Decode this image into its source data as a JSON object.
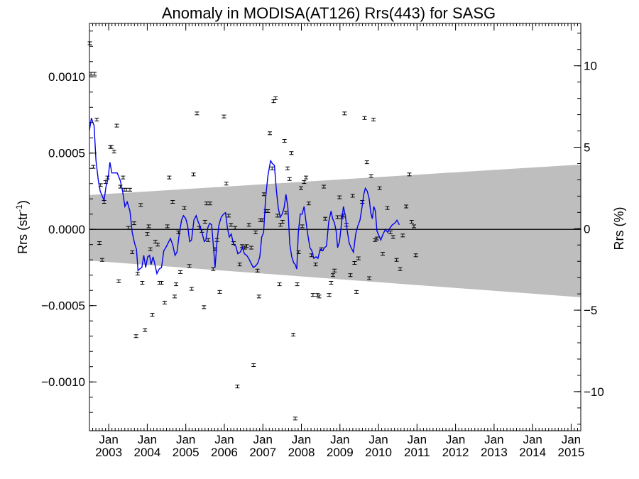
{
  "chart_data": {
    "type": "scatter",
    "title": "Anomaly in MODISA(AT126) Rrs(443) for SASG",
    "ylabel_left": "Rrs (str",
    "ylabel_left_sup": "-1",
    "ylabel_left_close": ")",
    "ylabel_right": "Rrs (%)",
    "xlim": [
      2002.5,
      2015.25
    ],
    "ylim": [
      -0.00132,
      0.00135
    ],
    "ylim_right": [
      -12.4,
      12.6
    ],
    "left_ticks": [
      {
        "value": 0.001,
        "label": "0.0010"
      },
      {
        "value": 0.0005,
        "label": "0.0005"
      },
      {
        "value": 0.0,
        "label": "0.0000"
      },
      {
        "value": -0.0005,
        "label": "−0.0005"
      },
      {
        "value": -0.001,
        "label": "−0.0010"
      }
    ],
    "right_ticks": [
      {
        "value": 10,
        "label": "10"
      },
      {
        "value": 5,
        "label": "5"
      },
      {
        "value": 0,
        "label": "0"
      },
      {
        "value": -5,
        "label": "−5"
      },
      {
        "value": -10,
        "label": "−10"
      }
    ],
    "x_ticks": [
      {
        "value": 2003.0,
        "month": "Jan",
        "year": "2003"
      },
      {
        "value": 2004.0,
        "month": "Jan",
        "year": "2004"
      },
      {
        "value": 2005.0,
        "month": "Jan",
        "year": "2005"
      },
      {
        "value": 2006.0,
        "month": "Jan",
        "year": "2006"
      },
      {
        "value": 2007.0,
        "month": "Jan",
        "year": "2007"
      },
      {
        "value": 2008.0,
        "month": "Jan",
        "year": "2008"
      },
      {
        "value": 2009.0,
        "month": "Jan",
        "year": "2009"
      },
      {
        "value": 2010.0,
        "month": "Jan",
        "year": "2010"
      },
      {
        "value": 2011.0,
        "month": "Jan",
        "year": "2011"
      },
      {
        "value": 2012.0,
        "month": "Jan",
        "year": "2012"
      },
      {
        "value": 2013.0,
        "month": "Jan",
        "year": "2013"
      },
      {
        "value": 2014.0,
        "month": "Jan",
        "year": "2014"
      },
      {
        "value": 2015.0,
        "month": "Jan",
        "year": "2015"
      }
    ],
    "band": {
      "x": [
        2002.5,
        2015.25
      ],
      "upper": [
        0.000225,
        0.000425
      ],
      "lower": [
        -0.000205,
        -0.000445
      ],
      "color": "#bebebe"
    },
    "zero_line": 0.0,
    "points": [
      [
        2002.51,
        0.00122
      ],
      [
        2002.54,
        0.00102
      ],
      [
        2002.6,
        0.00041
      ],
      [
        2002.63,
        0.00102
      ],
      [
        2002.69,
        0.00072
      ],
      [
        2002.76,
        -9e-05
      ],
      [
        2002.79,
        0.00029
      ],
      [
        2002.83,
        -0.0002
      ],
      [
        2002.88,
        0.00018
      ],
      [
        2002.92,
        0.00031
      ],
      [
        2002.97,
        0.00034
      ],
      [
        2003.04,
        0.00054
      ],
      [
        2003.07,
        0.00054
      ],
      [
        2003.14,
        0.00051
      ],
      [
        2003.21,
        0.00068
      ],
      [
        2003.26,
        -0.00034
      ],
      [
        2003.3,
        0.00028
      ],
      [
        2003.37,
        0.00034
      ],
      [
        2003.4,
        0.00026
      ],
      [
        2003.46,
        0.00026
      ],
      [
        2003.55,
        0.00026
      ],
      [
        2003.51,
        1e-05
      ],
      [
        2003.61,
        -0.00015
      ],
      [
        2003.66,
        4e-05
      ],
      [
        2003.71,
        -0.0007
      ],
      [
        2003.75,
        -0.00029
      ],
      [
        2003.83,
        0.00016
      ],
      [
        2003.87,
        -0.00035
      ],
      [
        2003.94,
        -0.00066
      ],
      [
        2004.0,
        -3e-05
      ],
      [
        2004.04,
        2e-05
      ],
      [
        2004.08,
        -0.00013
      ],
      [
        2004.13,
        -0.00056
      ],
      [
        2004.21,
        -8e-05
      ],
      [
        2004.27,
        -0.0001
      ],
      [
        2004.32,
        -0.00035
      ],
      [
        2004.37,
        -0.00035
      ],
      [
        2004.45,
        -0.00048
      ],
      [
        2004.52,
        2e-05
      ],
      [
        2004.57,
        0.00034
      ],
      [
        2004.66,
        0.00018
      ],
      [
        2004.71,
        -0.00044
      ],
      [
        2004.75,
        -0.00036
      ],
      [
        2004.81,
        -2e-05
      ],
      [
        2004.86,
        -0.00028
      ],
      [
        2004.96,
        0.00014
      ],
      [
        2005.09,
        -0.00024
      ],
      [
        2005.15,
        -0.00039
      ],
      [
        2005.2,
        0.00036
      ],
      [
        2005.29,
        0.00076
      ],
      [
        2005.35,
        1e-05
      ],
      [
        2005.42,
        -1e-05
      ],
      [
        2005.47,
        -0.00051
      ],
      [
        2005.5,
        5e-05
      ],
      [
        2005.54,
        0.00017
      ],
      [
        2005.58,
        -7e-05
      ],
      [
        2005.63,
        0.00017
      ],
      [
        2005.71,
        -0.00026
      ],
      [
        2005.76,
        -0.00013
      ],
      [
        2005.81,
        -7e-05
      ],
      [
        2005.88,
        -0.00041
      ],
      [
        2005.99,
        0.00074
      ],
      [
        2006.05,
        0.0003
      ],
      [
        2006.11,
        9e-05
      ],
      [
        2006.17,
        3e-05
      ],
      [
        2006.24,
        -9e-05
      ],
      [
        2006.28,
        1e-05
      ],
      [
        2006.34,
        -0.00103
      ],
      [
        2006.4,
        -0.00023
      ],
      [
        2006.46,
        -0.00011
      ],
      [
        2006.53,
        -0.00012
      ],
      [
        2006.58,
        -0.00011
      ],
      [
        2006.64,
        3e-05
      ],
      [
        2006.7,
        -0.00012
      ],
      [
        2006.76,
        -0.00089
      ],
      [
        2006.81,
        -2e-05
      ],
      [
        2006.86,
        -0.00027
      ],
      [
        2006.9,
        -0.00044
      ],
      [
        2006.93,
        6e-05
      ],
      [
        2006.98,
        6e-05
      ],
      [
        2007.03,
        0.00023
      ],
      [
        2007.08,
        0.00012
      ],
      [
        2007.13,
        0.00012
      ],
      [
        2007.18,
        0.00063
      ],
      [
        2007.24,
        0.0004
      ],
      [
        2007.28,
        0.00084
      ],
      [
        2007.33,
        0.00086
      ],
      [
        2007.38,
        9e-05
      ],
      [
        2007.43,
        -0.00036
      ],
      [
        2007.46,
        3e-05
      ],
      [
        2007.51,
        5e-05
      ],
      [
        2007.56,
        0.00058
      ],
      [
        2007.6,
        0.00011
      ],
      [
        2007.64,
        0.0004
      ],
      [
        2007.69,
        0.00033
      ],
      [
        2007.74,
        0.0005
      ],
      [
        2007.79,
        -0.00069
      ],
      [
        2007.84,
        -0.00124
      ],
      [
        2007.89,
        -0.00036
      ],
      [
        2007.93,
        -0.00015
      ],
      [
        2007.99,
        0.00027
      ],
      [
        2008.02,
        2e-05
      ],
      [
        2008.07,
        0.00031
      ],
      [
        2008.12,
        0.00034
      ],
      [
        2008.19,
        0.00017
      ],
      [
        2008.26,
        -0.00017
      ],
      [
        2008.3,
        -0.00043
      ],
      [
        2008.37,
        -0.00023
      ],
      [
        2008.42,
        -0.00043
      ],
      [
        2008.46,
        -0.00044
      ],
      [
        2008.52,
        -0.00013
      ],
      [
        2008.58,
        0.00028
      ],
      [
        2008.62,
        7e-05
      ],
      [
        2008.72,
        -0.00043
      ],
      [
        2008.77,
        -0.00035
      ],
      [
        2008.82,
        -0.0003
      ],
      [
        2008.86,
        -0.00027
      ],
      [
        2008.94,
        8e-05
      ],
      [
        2008.99,
        0.00021
      ],
      [
        2009.04,
        8e-05
      ],
      [
        2009.08,
        9e-05
      ],
      [
        2009.12,
        0.00076
      ],
      [
        2009.17,
        3e-05
      ],
      [
        2009.27,
        -0.0003
      ],
      [
        2009.33,
        0.00022
      ],
      [
        2009.38,
        -0.00022
      ],
      [
        2009.43,
        -0.00041
      ],
      [
        2009.48,
        -0.00019
      ],
      [
        2009.58,
        0.00018
      ],
      [
        2009.64,
        0.00073
      ],
      [
        2009.7,
        0.00044
      ],
      [
        2009.76,
        -0.00032
      ],
      [
        2009.81,
        0.00035
      ],
      [
        2009.87,
        0.00072
      ],
      [
        2009.91,
        -7e-05
      ],
      [
        2009.96,
        -6e-05
      ],
      [
        2010.03,
        0.00027
      ],
      [
        2010.11,
        -0.00016
      ],
      [
        2010.23,
        0.00014
      ],
      [
        2010.31,
        -2e-05
      ],
      [
        2010.38,
        -5e-05
      ],
      [
        2010.47,
        -0.0002
      ],
      [
        2010.56,
        -0.00026
      ],
      [
        2010.63,
        -4e-05
      ],
      [
        2010.72,
        0.00015
      ],
      [
        2010.8,
        0.00036
      ],
      [
        2010.86,
        5e-05
      ],
      [
        2010.92,
        2e-05
      ],
      [
        2010.97,
        -0.00017
      ]
    ],
    "line_color": "#0000ee",
    "smooth_line": [
      [
        2002.5,
        0.00065
      ],
      [
        2002.55,
        0.00073
      ],
      [
        2002.62,
        0.00068
      ],
      [
        2002.67,
        0.00045
      ],
      [
        2002.73,
        0.00032
      ],
      [
        2002.78,
        0.00025
      ],
      [
        2002.83,
        0.00022
      ],
      [
        2002.88,
        0.00019
      ],
      [
        2002.93,
        0.00028
      ],
      [
        2002.98,
        0.00033
      ],
      [
        2003.03,
        0.00044
      ],
      [
        2003.08,
        0.00037
      ],
      [
        2003.14,
        0.00037
      ],
      [
        2003.22,
        0.00037
      ],
      [
        2003.3,
        0.00032
      ],
      [
        2003.36,
        0.00025
      ],
      [
        2003.42,
        0.00015
      ],
      [
        2003.48,
        0.00018
      ],
      [
        2003.55,
        0.00012
      ],
      [
        2003.61,
        -2e-05
      ],
      [
        2003.67,
        -9e-05
      ],
      [
        2003.72,
        -0.00013
      ],
      [
        2003.76,
        -0.00027
      ],
      [
        2003.8,
        -0.00026
      ],
      [
        2003.86,
        -0.00025
      ],
      [
        2003.91,
        -0.00017
      ],
      [
        2003.96,
        -0.00025
      ],
      [
        2004.01,
        -0.00018
      ],
      [
        2004.06,
        -0.00017
      ],
      [
        2004.1,
        -0.00023
      ],
      [
        2004.15,
        -0.00018
      ],
      [
        2004.19,
        -0.00022
      ],
      [
        2004.25,
        -0.00029
      ],
      [
        2004.31,
        -0.00026
      ],
      [
        2004.37,
        -0.00025
      ],
      [
        2004.43,
        -0.00014
      ],
      [
        2004.48,
        -0.00012
      ],
      [
        2004.54,
        -9e-05
      ],
      [
        2004.6,
        -6e-05
      ],
      [
        2004.66,
        -0.0001
      ],
      [
        2004.72,
        -0.00017
      ],
      [
        2004.77,
        -0.00015
      ],
      [
        2004.83,
        -3e-05
      ],
      [
        2004.89,
        6e-05
      ],
      [
        2004.94,
        9e-05
      ],
      [
        2005.0,
        7e-05
      ],
      [
        2005.05,
        2e-05
      ],
      [
        2005.1,
        -8e-05
      ],
      [
        2005.15,
        -7e-05
      ],
      [
        2005.21,
        6e-05
      ],
      [
        2005.27,
        9e-05
      ],
      [
        2005.32,
        5e-05
      ],
      [
        2005.37,
        2e-05
      ],
      [
        2005.43,
        -3e-05
      ],
      [
        2005.48,
        -8e-05
      ],
      [
        2005.52,
        -7e-05
      ],
      [
        2005.57,
        1e-05
      ],
      [
        2005.62,
        4e-05
      ],
      [
        2005.67,
        3e-05
      ],
      [
        2005.71,
        -9e-05
      ],
      [
        2005.76,
        -0.00025
      ],
      [
        2005.81,
        -8e-05
      ],
      [
        2005.86,
        3e-05
      ],
      [
        2005.92,
        8e-05
      ],
      [
        2005.98,
        0.0001
      ],
      [
        2006.03,
        0.00011
      ],
      [
        2006.08,
        1e-05
      ],
      [
        2006.13,
        -5e-05
      ],
      [
        2006.18,
        -3e-05
      ],
      [
        2006.24,
        -0.0001
      ],
      [
        2006.3,
        -0.00011
      ],
      [
        2006.35,
        -0.00016
      ],
      [
        2006.41,
        -0.00015
      ],
      [
        2006.47,
        -0.00012
      ],
      [
        2006.52,
        -0.00016
      ],
      [
        2006.58,
        -0.00017
      ],
      [
        2006.63,
        -0.00019
      ],
      [
        2006.69,
        -0.00022
      ],
      [
        2006.75,
        -0.00025
      ],
      [
        2006.81,
        -0.00024
      ],
      [
        2006.87,
        -0.00022
      ],
      [
        2006.92,
        -0.00018
      ],
      [
        2006.97,
        -5e-05
      ],
      [
        2007.02,
        -2e-05
      ],
      [
        2007.07,
        0.0002
      ],
      [
        2007.13,
        0.00035
      ],
      [
        2007.2,
        0.00045
      ],
      [
        2007.25,
        0.00043
      ],
      [
        2007.3,
        0.00042
      ],
      [
        2007.35,
        0.00026
      ],
      [
        2007.4,
        0.00014
      ],
      [
        2007.45,
        8e-05
      ],
      [
        2007.5,
        0.0001
      ],
      [
        2007.55,
        0.00014
      ],
      [
        2007.6,
        0.00023
      ],
      [
        2007.65,
        0.00014
      ],
      [
        2007.7,
        -0.0001
      ],
      [
        2007.75,
        -0.00018
      ],
      [
        2007.8,
        -0.00022
      ],
      [
        2007.84,
        -0.00023
      ],
      [
        2007.88,
        -0.00026
      ],
      [
        2007.92,
        -2e-05
      ],
      [
        2007.97,
        0.0001
      ],
      [
        2008.02,
        0.0001
      ],
      [
        2008.07,
        0.00015
      ],
      [
        2008.12,
        5e-05
      ],
      [
        2008.17,
        -4e-05
      ],
      [
        2008.22,
        -0.00012
      ],
      [
        2008.27,
        -0.00014
      ],
      [
        2008.32,
        -0.00019
      ],
      [
        2008.38,
        -0.00018
      ],
      [
        2008.43,
        -0.00019
      ],
      [
        2008.49,
        -0.00013
      ],
      [
        2008.55,
        -0.00014
      ],
      [
        2008.6,
        -0.00012
      ],
      [
        2008.65,
        -0.00011
      ],
      [
        2008.71,
        5e-05
      ],
      [
        2008.77,
        0.00012
      ],
      [
        2008.81,
        7e-05
      ],
      [
        2008.86,
        4e-05
      ],
      [
        2008.9,
        -1e-05
      ],
      [
        2008.94,
        -0.00012
      ],
      [
        2008.99,
        -8e-05
      ],
      [
        2009.04,
        4e-05
      ],
      [
        2009.09,
        0.00015
      ],
      [
        2009.14,
        9e-05
      ],
      [
        2009.19,
        -1e-05
      ],
      [
        2009.24,
        -9e-05
      ],
      [
        2009.29,
        -0.00012
      ],
      [
        2009.35,
        -0.00015
      ],
      [
        2009.41,
        -3e-05
      ],
      [
        2009.46,
        2e-05
      ],
      [
        2009.52,
        6e-05
      ],
      [
        2009.57,
        0.00014
      ],
      [
        2009.62,
        0.00023
      ],
      [
        2009.66,
        0.00027
      ],
      [
        2009.71,
        0.00025
      ],
      [
        2009.76,
        0.0002
      ],
      [
        2009.8,
        0.00011
      ],
      [
        2009.84,
        7e-05
      ],
      [
        2009.88,
        0.00015
      ],
      [
        2009.92,
        0.00012
      ],
      [
        2009.96,
        -1e-05
      ],
      [
        2010.01,
        -4e-05
      ],
      [
        2010.06,
        -7e-05
      ],
      [
        2010.12,
        -3e-05
      ],
      [
        2010.18,
        -0.0
      ],
      [
        2010.24,
        -2e-05
      ],
      [
        2010.3,
        1e-05
      ],
      [
        2010.36,
        3e-05
      ],
      [
        2010.42,
        4e-05
      ],
      [
        2010.48,
        6e-05
      ],
      [
        2010.54,
        3e-05
      ]
    ]
  }
}
